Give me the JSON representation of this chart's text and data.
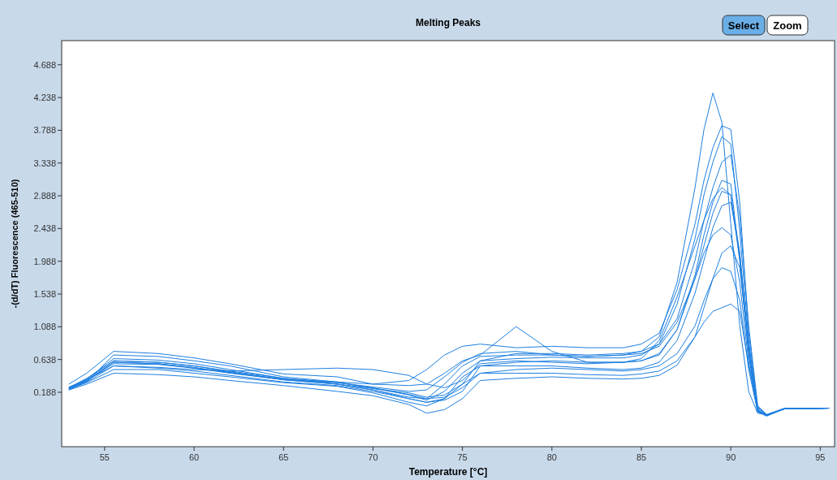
{
  "chart_data": {
    "type": "line",
    "title": "Melting Peaks",
    "xlabel": "Temperature [°C]",
    "ylabel": "-(d/dT) Fluorescence (465-510)",
    "annotations": [
      "Select",
      "Zoom"
    ],
    "xlim": [
      52.6,
      95.8
    ],
    "xticks": [
      55,
      60,
      65,
      70,
      75,
      80,
      85,
      90,
      95
    ],
    "ylim": [
      -0.56,
      5.02
    ],
    "yticks": [
      0.188,
      0.638,
      1.088,
      1.538,
      1.988,
      2.438,
      2.888,
      3.338,
      3.788,
      4.238,
      4.688
    ],
    "grid": false,
    "line_style": "solid",
    "x": [
      53,
      54,
      55.5,
      58,
      60,
      62,
      65,
      68,
      70,
      72,
      73,
      74,
      75,
      76,
      78,
      80,
      82,
      84,
      85,
      86,
      87,
      88,
      88.5,
      89,
      89.5,
      90,
      90.5,
      91,
      91.5,
      92,
      93,
      95.5
    ],
    "series": [
      {
        "color": "#1e7fe0",
        "values": [
          0.25,
          0.38,
          0.62,
          0.6,
          0.55,
          0.48,
          0.38,
          0.3,
          0.22,
          0.12,
          0.1,
          0.3,
          0.55,
          0.68,
          0.7,
          0.7,
          0.68,
          0.7,
          0.75,
          0.95,
          1.7,
          3.0,
          3.8,
          4.3,
          3.9,
          2.5,
          1.1,
          0.2,
          -0.1,
          -0.12,
          -0.03,
          -0.03
        ]
      },
      {
        "color": "#1e7fe0",
        "values": [
          0.24,
          0.35,
          0.58,
          0.57,
          0.52,
          0.45,
          0.36,
          0.32,
          0.25,
          0.15,
          0.08,
          0.2,
          0.45,
          0.62,
          0.65,
          0.67,
          0.66,
          0.66,
          0.7,
          0.85,
          1.4,
          2.3,
          2.9,
          3.35,
          3.7,
          3.6,
          2.4,
          0.9,
          -0.05,
          -0.13,
          -0.04,
          -0.03
        ]
      },
      {
        "color": "#1e7fe0",
        "values": [
          0.22,
          0.33,
          0.7,
          0.68,
          0.62,
          0.55,
          0.4,
          0.33,
          0.24,
          0.18,
          0.12,
          0.15,
          0.3,
          0.62,
          0.72,
          0.72,
          0.7,
          0.72,
          0.75,
          0.85,
          1.2,
          2.0,
          2.55,
          3.0,
          3.35,
          3.45,
          2.6,
          1.1,
          0.0,
          -0.12,
          -0.04,
          -0.03
        ]
      },
      {
        "color": "#1e7fe0",
        "values": [
          0.26,
          0.36,
          0.55,
          0.52,
          0.48,
          0.42,
          0.33,
          0.28,
          0.2,
          0.1,
          0.05,
          0.08,
          0.2,
          0.55,
          0.6,
          0.62,
          0.6,
          0.6,
          0.62,
          0.7,
          1.05,
          1.8,
          2.35,
          2.8,
          3.1,
          3.05,
          2.0,
          0.7,
          -0.08,
          -0.14,
          -0.04,
          -0.03
        ]
      },
      {
        "color": "#1e7fe0",
        "values": [
          0.23,
          0.32,
          0.5,
          0.5,
          0.45,
          0.4,
          0.32,
          0.27,
          0.18,
          0.05,
          0.0,
          0.1,
          0.4,
          0.55,
          0.55,
          0.55,
          0.52,
          0.5,
          0.52,
          0.6,
          0.9,
          1.55,
          2.0,
          2.45,
          2.75,
          2.8,
          2.1,
          0.8,
          -0.05,
          -0.13,
          -0.04,
          -0.03
        ]
      },
      {
        "color": "#1e7fe0",
        "values": [
          0.25,
          0.37,
          0.65,
          0.63,
          0.58,
          0.5,
          0.38,
          0.32,
          0.26,
          0.2,
          0.22,
          0.4,
          0.6,
          0.72,
          0.75,
          0.7,
          0.68,
          0.7,
          0.72,
          0.82,
          1.15,
          1.75,
          2.1,
          2.35,
          2.45,
          2.35,
          1.7,
          0.6,
          -0.08,
          -0.12,
          -0.04,
          -0.03
        ]
      },
      {
        "color": "#1e7fe0",
        "values": [
          0.24,
          0.34,
          0.6,
          0.58,
          0.52,
          0.46,
          0.36,
          0.3,
          0.24,
          0.16,
          0.1,
          0.12,
          0.25,
          0.45,
          0.5,
          0.52,
          0.5,
          0.48,
          0.5,
          0.55,
          0.72,
          1.1,
          1.45,
          1.75,
          1.9,
          1.85,
          1.45,
          0.5,
          -0.08,
          -0.13,
          -0.04,
          -0.03
        ]
      },
      {
        "color": "#1e7fe0",
        "values": [
          0.25,
          0.36,
          0.62,
          0.6,
          0.55,
          0.47,
          0.36,
          0.3,
          0.22,
          0.1,
          0.05,
          0.1,
          0.3,
          0.45,
          0.45,
          0.45,
          0.43,
          0.42,
          0.44,
          0.48,
          0.62,
          0.95,
          1.15,
          1.3,
          1.35,
          1.4,
          1.3,
          0.55,
          -0.03,
          -0.12,
          -0.04,
          -0.03
        ]
      },
      {
        "color": "#1e7fe0",
        "values": [
          0.24,
          0.35,
          0.6,
          0.58,
          0.53,
          0.46,
          0.37,
          0.33,
          0.3,
          0.28,
          0.3,
          0.45,
          0.62,
          0.7,
          1.09,
          0.75,
          0.6,
          0.6,
          0.62,
          0.72,
          1.05,
          1.75,
          2.2,
          2.65,
          2.95,
          2.9,
          2.1,
          0.8,
          -0.06,
          -0.13,
          -0.04,
          -0.03
        ]
      },
      {
        "color": "#1e7fe0",
        "values": [
          0.3,
          0.45,
          0.75,
          0.72,
          0.66,
          0.58,
          0.44,
          0.4,
          0.3,
          0.35,
          0.5,
          0.7,
          0.82,
          0.85,
          0.8,
          0.82,
          0.8,
          0.8,
          0.85,
          1.0,
          1.6,
          2.5,
          3.1,
          3.55,
          3.85,
          3.8,
          2.8,
          1.0,
          0.0,
          -0.12,
          -0.04,
          -0.03
        ]
      },
      {
        "color": "#1e7fe0",
        "values": [
          0.24,
          0.33,
          0.55,
          0.53,
          0.5,
          0.48,
          0.5,
          0.52,
          0.5,
          0.42,
          0.3,
          0.25,
          0.35,
          0.58,
          0.62,
          0.6,
          0.58,
          0.6,
          0.65,
          0.9,
          1.5,
          2.2,
          2.55,
          2.85,
          3.0,
          2.9,
          2.0,
          0.7,
          -0.07,
          -0.13,
          -0.04,
          -0.03
        ]
      },
      {
        "color": "#1e7fe0",
        "values": [
          0.22,
          0.3,
          0.45,
          0.43,
          0.4,
          0.35,
          0.28,
          0.2,
          0.14,
          0.02,
          -0.1,
          -0.05,
          0.1,
          0.35,
          0.38,
          0.4,
          0.38,
          0.37,
          0.38,
          0.42,
          0.56,
          0.95,
          1.35,
          1.75,
          2.1,
          2.2,
          1.9,
          0.8,
          -0.02,
          -0.12,
          -0.04,
          -0.03
        ]
      }
    ]
  }
}
